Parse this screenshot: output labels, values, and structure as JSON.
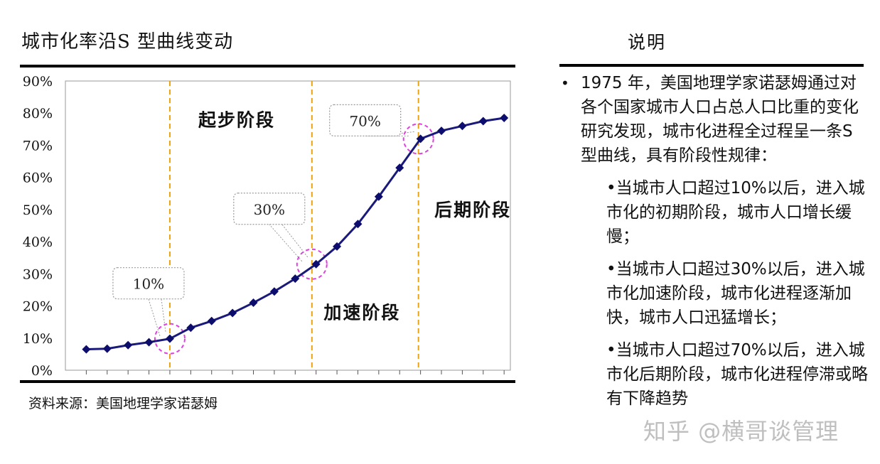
{
  "left_title": "城市化率沿S 型曲线变动",
  "source": "资料来源：美国地理学家诺瑟姆",
  "right_title": "说明",
  "description": {
    "main": "1975 年，美国地理学家诺瑟姆通过对各个国家城市人口占总人口比重的变化研究发现，城市化进程全过程呈一条S 型曲线，具有阶段性规律：",
    "points": [
      "•当城市人口超过10%以后，进入城市化的初期阶段，城市人口增长缓慢；",
      "•当城市人口超过30%以后，进入城市化加速阶段，城市化进程逐渐加快，城市人口迅猛增长；",
      "•当城市人口超过70%以后，进入城市化后期阶段，城市化进程停滞或略有下降趋势"
    ]
  },
  "watermark": "知乎 @横哥谈管理",
  "colors": {
    "line": "#1a1a7a",
    "marker": "#0d0d6e",
    "stage_divider": "#e8a317",
    "highlight_circle": "#e040e0",
    "callout_border": "#9a9a9a"
  },
  "chart_data": {
    "type": "line",
    "title": "",
    "xlabel": "",
    "ylabel": "",
    "ylim": [
      0,
      90
    ],
    "y_ticks": [
      "0%",
      "10%",
      "20%",
      "30%",
      "40%",
      "50%",
      "60%",
      "70%",
      "80%",
      "90%"
    ],
    "grid": false,
    "series": [
      {
        "x": [
          1,
          2,
          3,
          4,
          5,
          6,
          7,
          8,
          9,
          10,
          11,
          12,
          13,
          14,
          15,
          16,
          17,
          18,
          19,
          20,
          21
        ],
        "values": [
          6.5,
          6.7,
          7.8,
          8.7,
          9.8,
          13.2,
          15.3,
          17.8,
          21,
          24.5,
          28.5,
          33,
          38.5,
          45.5,
          54,
          63,
          72,
          74.5,
          76,
          77.5,
          78.5
        ]
      }
    ],
    "stage_dividers_x": [
      5,
      11.8,
      16.9
    ],
    "stage_labels": [
      {
        "text": "起步阶段",
        "x": 8.2,
        "y": 76
      },
      {
        "text": "后期阶段",
        "x": 19.5,
        "y": 48
      },
      {
        "text": "加速阶段",
        "x": 14.2,
        "y": 16
      }
    ],
    "annotations": [
      {
        "text": "10%",
        "point_x": 5,
        "point_y": 9.8
      },
      {
        "text": "30%",
        "point_x": 11.8,
        "point_y": 33
      },
      {
        "text": "70%",
        "point_x": 16.9,
        "point_y": 72
      }
    ]
  }
}
